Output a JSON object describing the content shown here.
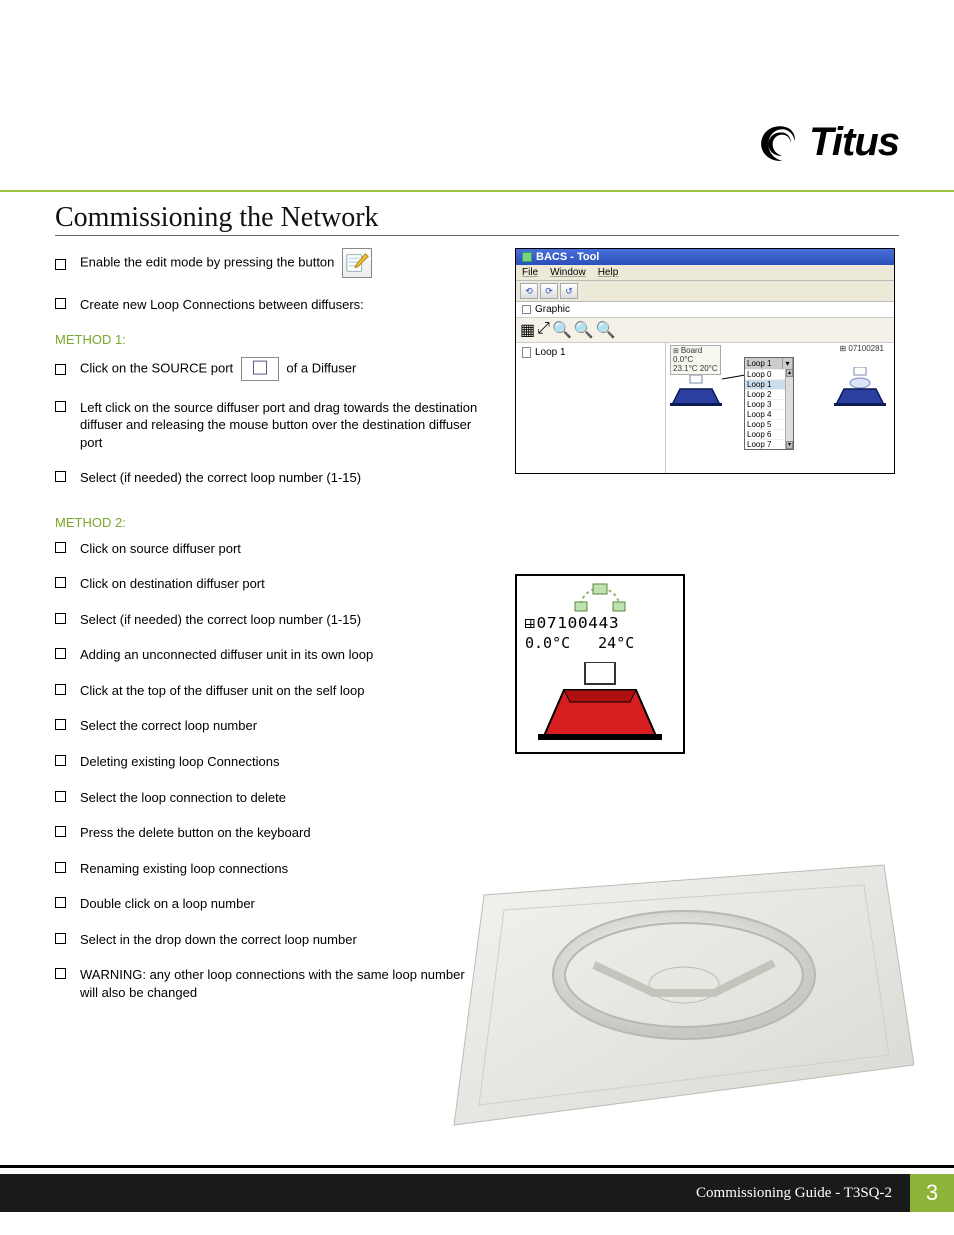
{
  "brand": {
    "name": "Titus"
  },
  "section": {
    "title": "Commissioning the Network"
  },
  "intro": {
    "step1": "Enable the edit mode by pressing the button",
    "step2": "Create new Loop Connections between diffusers:"
  },
  "method1": {
    "label": "METHOD 1:",
    "s1a": "Click on the SOURCE port",
    "s1b": "of a Diffuser",
    "s2": "Left click on the source diffuser port and drag towards the destination diffuser and releasing the mouse button over the destination diffuser port",
    "s3": "Select (if needed) the correct loop number (1-15)"
  },
  "method2": {
    "label": "METHOD 2:",
    "items": [
      "Click on source diffuser port",
      "Click on destination diffuser port",
      "Select (if needed) the correct loop number (1-15)",
      "Adding an unconnected diffuser unit in its own loop",
      "Click at the top of the diffuser unit on the self loop",
      "Select the correct loop number",
      "Deleting existing loop Connections",
      "Select the loop connection to delete",
      "Press the delete button on the keyboard",
      "Renaming existing loop connections",
      "Double click on a loop number",
      "Select in the drop down the correct loop number",
      "WARNING: any other loop connections with the same loop number will also be changed"
    ]
  },
  "fig1": {
    "window_title": "BACS - Tool",
    "menus": [
      "File",
      "Window",
      "Help"
    ],
    "tab_label": "Graphic",
    "tree_node": "Loop 1",
    "board": {
      "title": "Board",
      "t1": "0.0°C",
      "t2": "23.1°C  20°C"
    },
    "right_id": "07100281",
    "loop_list_header": "Loop 1",
    "loops": [
      "Loop 0",
      "Loop 1",
      "Loop 2",
      "Loop 3",
      "Loop 4",
      "Loop 5",
      "Loop 6",
      "Loop 7"
    ],
    "colors": {
      "titlebar_grad_top": "#4a6fd8",
      "titlebar_grad_bot": "#2a4fb8",
      "chrome": "#ece9d8",
      "diffuser_fill": "#2b3f9e",
      "diffuser_stroke": "#0a1a55"
    }
  },
  "fig2": {
    "id": "07100443",
    "temp1": "0.0°C",
    "temp2": "24°C",
    "colors": {
      "diffuser_fill": "#d81e1e",
      "diffuser_stroke": "#000"
    }
  },
  "footer": {
    "label": "Commissioning Guide - T3SQ-2",
    "page": "3",
    "bar_color": "#1a1a1a",
    "pagenum_bg": "#8db338"
  },
  "palette": {
    "accent_green": "#9ac43c",
    "method_green": "#7aa62a"
  }
}
